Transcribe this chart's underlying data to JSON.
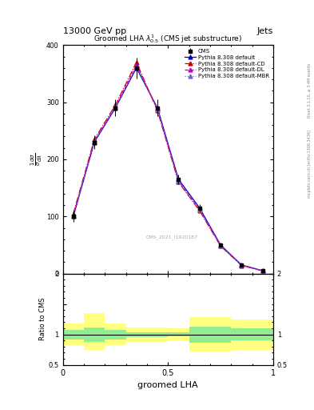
{
  "title": "13000 GeV pp",
  "title_right": "Jets",
  "subtitle": "Groomed LHA $\\lambda^{1}_{0.5}$ (CMS jet substructure)",
  "xlabel": "groomed LHA",
  "ylabel_ratio": "Ratio to CMS",
  "watermark": "CMS_2021_I1920187",
  "right_label": "Rivet 3.1.10, ≥ 3.4M events",
  "right_label2": "mcplots.cern.ch [arXiv:1306.3436]",
  "x_points": [
    0.05,
    0.15,
    0.25,
    0.35,
    0.45,
    0.55,
    0.65,
    0.75,
    0.85,
    0.95
  ],
  "cms_y": [
    100,
    230,
    290,
    360,
    290,
    165,
    115,
    50,
    15,
    5
  ],
  "cms_yerr": [
    10,
    12,
    15,
    18,
    15,
    8,
    6,
    3,
    1,
    0.5
  ],
  "py_default_y": [
    100,
    230,
    290,
    360,
    290,
    165,
    115,
    50,
    15,
    5
  ],
  "py_cd_y": [
    105,
    235,
    295,
    370,
    285,
    160,
    110,
    48,
    14,
    4.8
  ],
  "py_dl_y": [
    102,
    232,
    292,
    365,
    288,
    162,
    112,
    49,
    14.5,
    4.9
  ],
  "py_mbr_y": [
    101,
    231,
    291,
    362,
    287,
    161,
    111,
    49,
    14.2,
    4.8
  ],
  "color_default": "#0000cc",
  "color_cd": "#cc0000",
  "color_dl": "#cc00cc",
  "color_mbr": "#6666cc",
  "xlim": [
    0,
    1
  ],
  "ylim_main": [
    0,
    400
  ],
  "ylim_ratio": [
    0.5,
    2.0
  ],
  "yticks_main": [
    0,
    100,
    200,
    300,
    400
  ],
  "ratio_bins": [
    0.0,
    0.1,
    0.2,
    0.3,
    0.4,
    0.5,
    0.6,
    0.65,
    0.7,
    0.8,
    0.9,
    1.0
  ],
  "ratio_green_low": [
    0.92,
    0.88,
    0.92,
    0.96,
    0.96,
    0.97,
    0.87,
    0.87,
    0.87,
    0.9,
    0.9,
    0.9
  ],
  "ratio_green_high": [
    1.08,
    1.12,
    1.08,
    1.04,
    1.04,
    1.03,
    1.13,
    1.13,
    1.13,
    1.1,
    1.1,
    1.1
  ],
  "ratio_yellow_low": [
    0.82,
    0.75,
    0.82,
    0.88,
    0.88,
    0.9,
    0.72,
    0.72,
    0.72,
    0.75,
    0.75,
    0.75
  ],
  "ratio_yellow_high": [
    1.18,
    1.35,
    1.18,
    1.12,
    1.12,
    1.1,
    1.28,
    1.28,
    1.28,
    1.25,
    1.25,
    1.25
  ],
  "bg_color": "#ffffff"
}
